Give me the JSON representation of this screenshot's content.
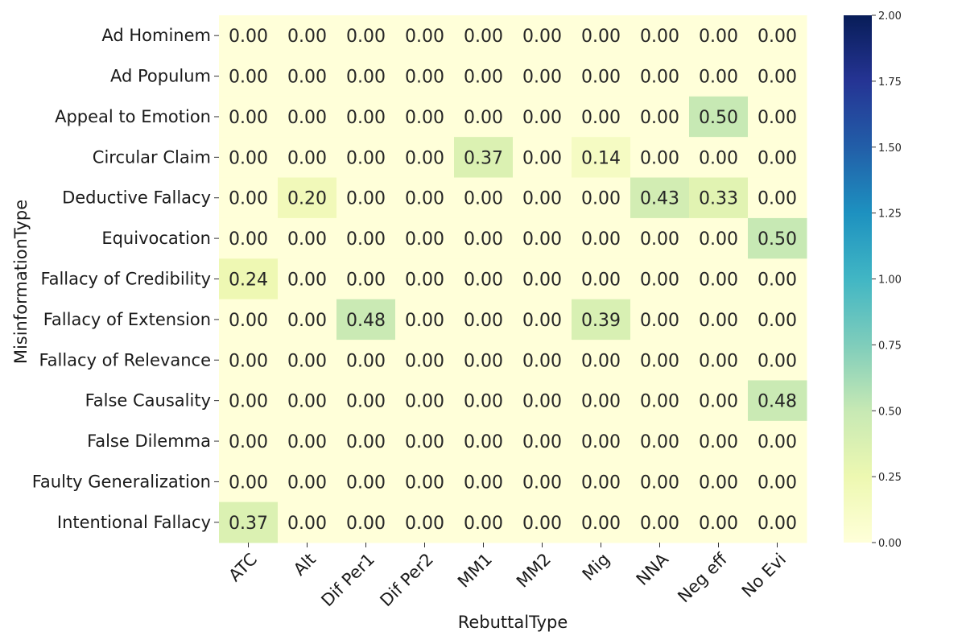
{
  "chart_data": {
    "type": "heatmap",
    "xlabel": "RebuttalType",
    "ylabel": "MisinformationType",
    "x_categories": [
      "ATC",
      "Alt",
      "Dif Per1",
      "Dif Per2",
      "MM1",
      "MM2",
      "Mig",
      "NNA",
      "Neg eff",
      "No Evi"
    ],
    "y_categories": [
      "Ad Hominem",
      "Ad Populum",
      "Appeal to Emotion",
      "Circular Claim",
      "Deductive Fallacy",
      "Equivocation",
      "Fallacy of Credibility",
      "Fallacy of Extension",
      "Fallacy of Relevance",
      "False Causality",
      "False Dilemma",
      "Faulty Generalization",
      "Intentional Fallacy"
    ],
    "values": [
      [
        0.0,
        0.0,
        0.0,
        0.0,
        0.0,
        0.0,
        0.0,
        0.0,
        0.0,
        0.0
      ],
      [
        0.0,
        0.0,
        0.0,
        0.0,
        0.0,
        0.0,
        0.0,
        0.0,
        0.0,
        0.0
      ],
      [
        0.0,
        0.0,
        0.0,
        0.0,
        0.0,
        0.0,
        0.0,
        0.0,
        0.5,
        0.0
      ],
      [
        0.0,
        0.0,
        0.0,
        0.0,
        0.37,
        0.0,
        0.14,
        0.0,
        0.0,
        0.0
      ],
      [
        0.0,
        0.2,
        0.0,
        0.0,
        0.0,
        0.0,
        0.0,
        0.43,
        0.33,
        0.0
      ],
      [
        0.0,
        0.0,
        0.0,
        0.0,
        0.0,
        0.0,
        0.0,
        0.0,
        0.0,
        0.5
      ],
      [
        0.24,
        0.0,
        0.0,
        0.0,
        0.0,
        0.0,
        0.0,
        0.0,
        0.0,
        0.0
      ],
      [
        0.0,
        0.0,
        0.48,
        0.0,
        0.0,
        0.0,
        0.39,
        0.0,
        0.0,
        0.0
      ],
      [
        0.0,
        0.0,
        0.0,
        0.0,
        0.0,
        0.0,
        0.0,
        0.0,
        0.0,
        0.0
      ],
      [
        0.0,
        0.0,
        0.0,
        0.0,
        0.0,
        0.0,
        0.0,
        0.0,
        0.0,
        0.48
      ],
      [
        0.0,
        0.0,
        0.0,
        0.0,
        0.0,
        0.0,
        0.0,
        0.0,
        0.0,
        0.0
      ],
      [
        0.0,
        0.0,
        0.0,
        0.0,
        0.0,
        0.0,
        0.0,
        0.0,
        0.0,
        0.0
      ],
      [
        0.37,
        0.0,
        0.0,
        0.0,
        0.0,
        0.0,
        0.0,
        0.0,
        0.0,
        0.0
      ]
    ],
    "value_format": "0.00",
    "colormap": "YlGnBu",
    "colormap_stops": [
      "#ffffd9",
      "#edf8b1",
      "#c7e9b4",
      "#7fcdbb",
      "#41b6c4",
      "#1d91c0",
      "#225ea8",
      "#253494",
      "#081d58"
    ],
    "vmin": 0,
    "vmax": 2,
    "colorbar_ticks": [
      "0.00",
      "0.25",
      "0.50",
      "0.75",
      "1.00",
      "1.25",
      "1.50",
      "1.75",
      "2.00"
    ]
  }
}
